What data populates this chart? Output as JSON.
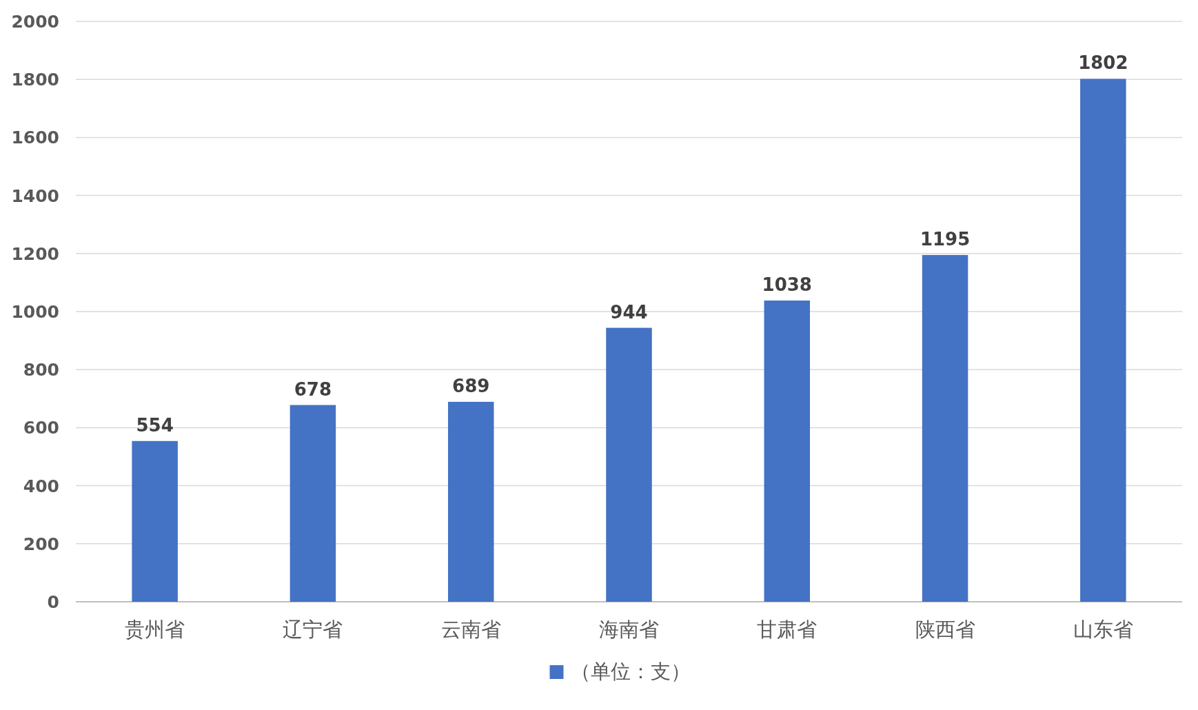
{
  "chart_data": {
    "type": "bar",
    "categories": [
      "贵州省",
      "辽宁省",
      "云南省",
      "海南省",
      "甘肃省",
      "陕西省",
      "山东省"
    ],
    "series": [
      {
        "name": "（单位：支）",
        "color": "#4472c4",
        "values": [
          554,
          678,
          689,
          944,
          1038,
          1195,
          1802
        ]
      }
    ],
    "ylim": [
      0,
      2000
    ],
    "yticks": [
      0,
      200,
      400,
      600,
      800,
      1000,
      1200,
      1400,
      1600,
      1800,
      2000
    ],
    "grid": "y",
    "legend": "bottom",
    "data_labels": true
  }
}
